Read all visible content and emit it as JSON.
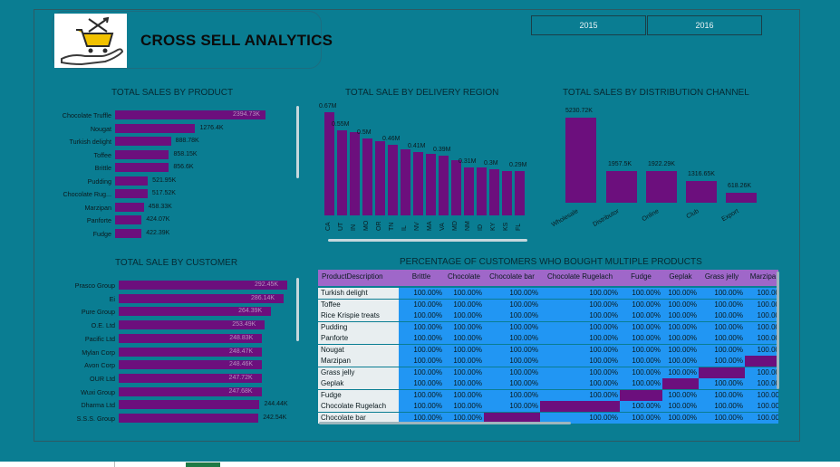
{
  "header": {
    "title": "CROSS SELL ANALYTICS",
    "logo_icon": "shopping-cart-hand-icon"
  },
  "year_slicer": {
    "options": [
      "2015",
      "2016"
    ]
  },
  "colors": {
    "background": "#0a7d92",
    "bar": "#6c0f7d",
    "matrix_cell": "#2196f3",
    "matrix_header": "#9f67c9"
  },
  "sales_by_product": {
    "title": "TOTAL SALES BY PRODUCT",
    "chart_data": {
      "type": "bar",
      "orientation": "horizontal",
      "categories": [
        "Chocolate Truffle",
        "Nougat",
        "Turkish delight",
        "Toffee",
        "Brittle",
        "Pudding",
        "Chocolate Rug...",
        "Marzipan",
        "Panforte",
        "Fudge"
      ],
      "values": [
        2394.73,
        1276.4,
        888.78,
        858.15,
        856.6,
        521.95,
        517.52,
        458.33,
        424.07,
        422.39
      ],
      "labels": [
        "2394.73K",
        "1276.4K",
        "888.78K",
        "858.15K",
        "856.6K",
        "521.95K",
        "517.52K",
        "458.33K",
        "424.07K",
        "422.39K"
      ],
      "unit": "K"
    }
  },
  "sales_by_region": {
    "title": "TOTAL SALE BY DELIVERY REGION",
    "chart_data": {
      "type": "bar",
      "categories": [
        "CA",
        "UT",
        "IN",
        "MO",
        "OR",
        "TN",
        "IL",
        "NV",
        "MA",
        "VA",
        "MD",
        "NM",
        "ID",
        "KY",
        "KS",
        "FL"
      ],
      "values": [
        0.67,
        0.55,
        0.54,
        0.5,
        0.48,
        0.46,
        0.43,
        0.41,
        0.4,
        0.39,
        0.36,
        0.31,
        0.31,
        0.3,
        0.29,
        0.29
      ],
      "labels": [
        "0.67M",
        "0.55M",
        "",
        "0.5M",
        "",
        "0.46M",
        "",
        "0.41M",
        "",
        "0.39M",
        "",
        "0.31M",
        "",
        "0.3M",
        "",
        "0.29M"
      ],
      "unit": "M"
    }
  },
  "sales_by_channel": {
    "title": "TOTAL SALES BY DISTRIBUTION CHANNEL",
    "chart_data": {
      "type": "bar",
      "categories": [
        "Wholesale",
        "Distributor",
        "Online",
        "Club",
        "Export"
      ],
      "values": [
        5230.72,
        1957.5,
        1922.29,
        1316.65,
        618.26
      ],
      "labels": [
        "5230.72K",
        "1957.5K",
        "1922.29K",
        "1316.65K",
        "618.26K"
      ],
      "unit": "K"
    }
  },
  "sales_by_customer": {
    "title": "TOTAL SALE BY CUSTOMER",
    "chart_data": {
      "type": "bar",
      "orientation": "horizontal",
      "categories": [
        "Prasco Group",
        "Ei",
        "Pure Group",
        "O.E. Ltd",
        "Pacific Ltd",
        "Mylan Corp",
        "Avon Corp",
        "OUR Ltd",
        "Wuxi Group",
        "Dharma Ltd",
        "S.S.S. Group"
      ],
      "values": [
        292.45,
        286.14,
        264.39,
        253.49,
        248.83,
        248.47,
        248.46,
        247.72,
        247.68,
        244.44,
        242.54
      ],
      "labels": [
        "292.45K",
        "286.14K",
        "264.39K",
        "253.49K",
        "248.83K",
        "248.47K",
        "248.46K",
        "247.72K",
        "247.68K",
        "244.44K",
        "242.54K"
      ],
      "unit": "K"
    }
  },
  "cross_sell_matrix": {
    "title": "PERCENTAGE OF CUSTOMERS WHO BOUGHT MULTIPLE PRODUCTS",
    "row_header": "ProductDescription",
    "columns": [
      "Brittle",
      "Chocolate",
      "Chocolate bar",
      "Chocolate Rugelach",
      "Fudge",
      "Geplak",
      "Grass jelly",
      "Marzipa"
    ],
    "rows": [
      {
        "name": "Turkish delight",
        "cells": [
          "100.00%",
          "100.00%",
          "100.00%",
          "100.00%",
          "100.00%",
          "100.00%",
          "100.00%",
          "100.00"
        ]
      },
      {
        "name": "Toffee",
        "cells": [
          "100.00%",
          "100.00%",
          "100.00%",
          "100.00%",
          "100.00%",
          "100.00%",
          "100.00%",
          "100.00"
        ]
      },
      {
        "name": "Rice Krispie treats",
        "cells": [
          "100.00%",
          "100.00%",
          "100.00%",
          "100.00%",
          "100.00%",
          "100.00%",
          "100.00%",
          "100.00"
        ]
      },
      {
        "name": "Pudding",
        "cells": [
          "100.00%",
          "100.00%",
          "100.00%",
          "100.00%",
          "100.00%",
          "100.00%",
          "100.00%",
          "100.00"
        ]
      },
      {
        "name": "Panforte",
        "cells": [
          "100.00%",
          "100.00%",
          "100.00%",
          "100.00%",
          "100.00%",
          "100.00%",
          "100.00%",
          "100.00"
        ]
      },
      {
        "name": "Nougat",
        "cells": [
          "100.00%",
          "100.00%",
          "100.00%",
          "100.00%",
          "100.00%",
          "100.00%",
          "100.00%",
          "100.00"
        ]
      },
      {
        "name": "Marzipan",
        "cells": [
          "100.00%",
          "100.00%",
          "100.00%",
          "100.00%",
          "100.00%",
          "100.00%",
          "100.00%",
          ""
        ]
      },
      {
        "name": "Grass jelly",
        "cells": [
          "100.00%",
          "100.00%",
          "100.00%",
          "100.00%",
          "100.00%",
          "100.00%",
          "",
          "100.00"
        ]
      },
      {
        "name": "Geplak",
        "cells": [
          "100.00%",
          "100.00%",
          "100.00%",
          "100.00%",
          "100.00%",
          "",
          "100.00%",
          "100.00"
        ]
      },
      {
        "name": "Fudge",
        "cells": [
          "100.00%",
          "100.00%",
          "100.00%",
          "100.00%",
          "",
          "100.00%",
          "100.00%",
          "100.00"
        ]
      },
      {
        "name": "Chocolate Rugelach",
        "cells": [
          "100.00%",
          "100.00%",
          "100.00%",
          "",
          "100.00%",
          "100.00%",
          "100.00%",
          "100.00"
        ]
      },
      {
        "name": "Chocolate bar",
        "cells": [
          "100.00%",
          "100.00%",
          "",
          "100.00%",
          "100.00%",
          "100.00%",
          "100.00%",
          "100.00"
        ]
      }
    ]
  }
}
